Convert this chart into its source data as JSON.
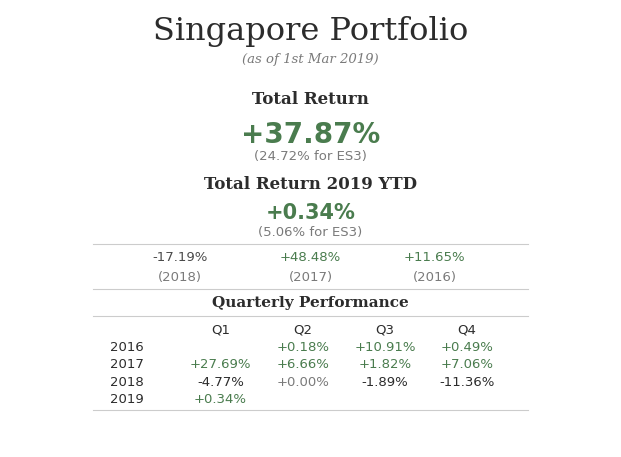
{
  "title": "Singapore Portfolio",
  "subtitle": "(as of 1st Mar 2019)",
  "total_return_label": "Total Return",
  "total_return_value": "+37.87%",
  "total_return_benchmark": "(24.72% for ES3)",
  "ytd_label": "Total Return 2019 YTD",
  "ytd_value": "+0.34%",
  "ytd_benchmark": "(5.06% for ES3)",
  "prior_returns": [
    {
      "value": "-17.19%",
      "year": "(2018)",
      "color": "#4a4a4a"
    },
    {
      "value": "+48.48%",
      "year": "(2017)",
      "color": "#4a7c4e"
    },
    {
      "value": "+11.65%",
      "year": "(2016)",
      "color": "#4a7c4e"
    }
  ],
  "quarterly_label": "Quarterly Performance",
  "quarters": [
    "Q1",
    "Q2",
    "Q3",
    "Q4"
  ],
  "years": [
    "2016",
    "2017",
    "2018",
    "2019"
  ],
  "quarterly_data": {
    "2016": {
      "Q1": "",
      "Q2": "+0.18%",
      "Q3": "+10.91%",
      "Q4": "+0.49%"
    },
    "2017": {
      "Q1": "+27.69%",
      "Q2": "+6.66%",
      "Q3": "+1.82%",
      "Q4": "+7.06%"
    },
    "2018": {
      "Q1": "-4.77%",
      "Q2": "+0.00%",
      "Q3": "-1.89%",
      "Q4": "-11.36%"
    },
    "2019": {
      "Q1": "+0.34%",
      "Q2": "",
      "Q3": "",
      "Q4": ""
    }
  },
  "green_color": "#4a7c4e",
  "dark_color": "#2c2c2c",
  "gray_color": "#7a7a7a",
  "bg_color": "#ffffff",
  "line_color": "#cccccc",
  "figsize": [
    6.21,
    4.57
  ],
  "dpi": 100
}
